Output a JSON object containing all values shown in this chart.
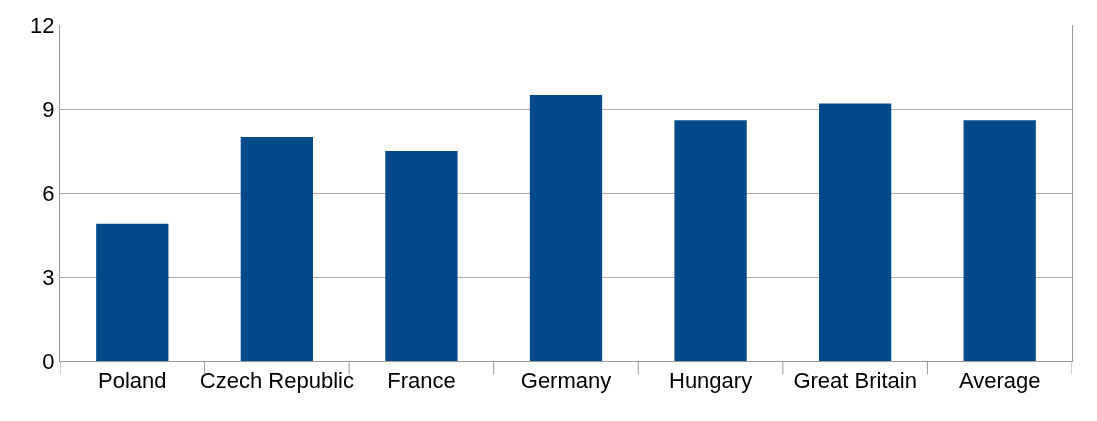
{
  "chart_data": {
    "type": "bar",
    "categories": [
      "Poland",
      "Czech Republic",
      "France",
      "Germany",
      "Hungary",
      "Great Britain",
      "Average"
    ],
    "values": [
      4.9,
      8.0,
      7.5,
      9.5,
      8.6,
      9.2,
      8.6
    ],
    "color": "#044a8a",
    "ylim": [
      0,
      12
    ],
    "yticks": [
      0,
      3,
      6,
      9,
      12
    ],
    "grid": "y"
  }
}
